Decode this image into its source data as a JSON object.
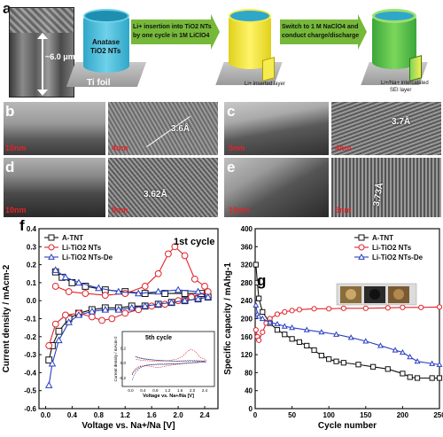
{
  "panel_a": {
    "label": "a",
    "sem_height": "~6.0 μm",
    "tube_label_1": "Anatase",
    "tube_label_2": "TiO2 NTs",
    "substrate": "Ti foil",
    "step1_line1": "Li+ insertion into TiO2 NTs",
    "step1_line2": "by one cycle in 1M LiClO4",
    "step2_line1": "Switch to 1 M NaClO4 and",
    "step2_line2": "conduct charge/discharge",
    "inserted_layer": "Li+ inserted layer",
    "sei_line1": "Li+/Na+ intercalated",
    "sei_line2": "SEI layer"
  },
  "panel_b": {
    "label": "b",
    "scale_left": "10nm",
    "scale_right": "4nm",
    "d_spacing": "3.6Å"
  },
  "panel_c": {
    "label": "c",
    "scale_left": "5nm",
    "scale_right": "4nm",
    "d_spacing": "3.7Å"
  },
  "panel_d": {
    "label": "d",
    "scale_left": "10nm",
    "scale_right": "5nm",
    "d_spacing": "3.62Å"
  },
  "panel_e": {
    "label": "e",
    "scale_left": "10nm",
    "scale_right": "5nm",
    "d_spacing": "3.73Å"
  },
  "panel_f": {
    "label": "f",
    "annotation": "1st cycle",
    "inset_label": "5th cycle",
    "inset_xlabel": "Voltage vs. Na+/Na [V]",
    "inset_ylabel": "Current density / mAcm-2",
    "inset_x_ticks": [
      "0.0",
      "0.4",
      "0.8",
      "1.2",
      "1.6",
      "2.0",
      "2.4"
    ],
    "inset_y_ticks": [
      "-0.2",
      "0.0",
      "0.2"
    ]
  },
  "panel_g": {
    "label": "g",
    "inset": "electrode photos"
  },
  "chart_data": [
    {
      "type": "line",
      "title": "",
      "xlabel": "Voltage vs. Na+/Na [V]",
      "ylabel": "Current density / mAcm-2",
      "xlim": [
        -0.1,
        2.6
      ],
      "ylim": [
        -0.6,
        0.4
      ],
      "x_ticks": [
        "0.0",
        "0.4",
        "0.8",
        "1.2",
        "1.6",
        "2.0",
        "2.4"
      ],
      "y_ticks": [
        "0.4",
        "0.3",
        "0.2",
        "0.1",
        "0.0",
        "-0.1",
        "-0.2",
        "-0.3",
        "-0.4",
        "-0.5",
        "-0.6"
      ],
      "legend": "top-left",
      "series": [
        {
          "name": "A-TNT",
          "color": "#111111",
          "marker": "square",
          "points": [
            [
              0.05,
              -0.33
            ],
            [
              0.1,
              -0.25
            ],
            [
              0.2,
              -0.17
            ],
            [
              0.35,
              -0.1
            ],
            [
              0.5,
              -0.07
            ],
            [
              0.7,
              -0.05
            ],
            [
              0.9,
              -0.04
            ],
            [
              1.1,
              -0.04
            ],
            [
              1.3,
              -0.03
            ],
            [
              1.5,
              -0.03
            ],
            [
              1.7,
              -0.02
            ],
            [
              1.9,
              -0.01
            ],
            [
              2.1,
              0.0
            ],
            [
              2.3,
              0.01
            ],
            [
              2.45,
              0.02
            ],
            [
              2.35,
              0.04
            ],
            [
              2.1,
              0.04
            ],
            [
              1.8,
              0.04
            ],
            [
              1.5,
              0.04
            ],
            [
              1.2,
              0.05
            ],
            [
              0.9,
              0.06
            ],
            [
              0.6,
              0.08
            ],
            [
              0.4,
              0.1
            ],
            [
              0.25,
              0.13
            ],
            [
              0.15,
              0.16
            ]
          ]
        },
        {
          "name": "Li-TiO2 NTs",
          "color": "#e0242a",
          "marker": "circle",
          "points": [
            [
              0.05,
              -0.25
            ],
            [
              0.15,
              -0.13
            ],
            [
              0.3,
              -0.08
            ],
            [
              0.5,
              -0.07
            ],
            [
              0.7,
              -0.09
            ],
            [
              0.85,
              -0.11
            ],
            [
              1.0,
              -0.1
            ],
            [
              1.2,
              -0.07
            ],
            [
              1.4,
              -0.05
            ],
            [
              1.6,
              -0.03
            ],
            [
              1.8,
              -0.02
            ],
            [
              2.0,
              0.0
            ],
            [
              2.2,
              0.02
            ],
            [
              2.45,
              0.05
            ],
            [
              2.4,
              0.08
            ],
            [
              2.25,
              0.12
            ],
            [
              2.1,
              0.25
            ],
            [
              1.95,
              0.3
            ],
            [
              1.85,
              0.26
            ],
            [
              1.7,
              0.15
            ],
            [
              1.5,
              0.08
            ],
            [
              1.2,
              0.04
            ],
            [
              0.9,
              0.03
            ],
            [
              0.6,
              0.04
            ],
            [
              0.35,
              0.05
            ],
            [
              0.15,
              0.08
            ]
          ]
        },
        {
          "name": "Li-TiO2 NTs-De",
          "color": "#2a3fbf",
          "marker": "triangle",
          "points": [
            [
              0.05,
              -0.47
            ],
            [
              0.1,
              -0.35
            ],
            [
              0.2,
              -0.22
            ],
            [
              0.35,
              -0.12
            ],
            [
              0.5,
              -0.08
            ],
            [
              0.7,
              -0.06
            ],
            [
              0.9,
              -0.05
            ],
            [
              1.1,
              -0.05
            ],
            [
              1.3,
              -0.04
            ],
            [
              1.5,
              -0.03
            ],
            [
              1.7,
              -0.02
            ],
            [
              1.9,
              -0.01
            ],
            [
              2.1,
              0.0
            ],
            [
              2.3,
              0.01
            ],
            [
              2.45,
              0.02
            ],
            [
              2.3,
              0.05
            ],
            [
              2.0,
              0.06
            ],
            [
              1.7,
              0.05
            ],
            [
              1.4,
              0.04
            ],
            [
              1.1,
              0.05
            ],
            [
              0.8,
              0.07
            ],
            [
              0.5,
              0.1
            ],
            [
              0.3,
              0.13
            ],
            [
              0.15,
              0.17
            ]
          ]
        }
      ]
    },
    {
      "type": "scatter",
      "title": "",
      "xlabel": "Cycle number",
      "ylabel": "Specific capacity / mAhg-1",
      "xlim": [
        0,
        250
      ],
      "ylim": [
        0,
        400
      ],
      "x_ticks": [
        "0",
        "50",
        "100",
        "150",
        "200",
        "250"
      ],
      "y_ticks": [
        "0",
        "40",
        "80",
        "120",
        "160",
        "200",
        "240",
        "280",
        "320",
        "360",
        "400"
      ],
      "legend": "top-right",
      "series": [
        {
          "name": "A-TNT",
          "color": "#111111",
          "marker": "square",
          "points": [
            [
              1,
              320
            ],
            [
              3,
              280
            ],
            [
              5,
              245
            ],
            [
              10,
              215
            ],
            [
              20,
              190
            ],
            [
              30,
              175
            ],
            [
              40,
              165
            ],
            [
              50,
              155
            ],
            [
              60,
              148
            ],
            [
              70,
              140
            ],
            [
              80,
              130
            ],
            [
              90,
              118
            ],
            [
              100,
              110
            ],
            [
              110,
              105
            ],
            [
              120,
              102
            ],
            [
              140,
              98
            ],
            [
              160,
              93
            ],
            [
              180,
              88
            ],
            [
              200,
              78
            ],
            [
              210,
              70
            ],
            [
              220,
              68
            ],
            [
              240,
              68
            ],
            [
              250,
              68
            ]
          ]
        },
        {
          "name": "Li-TiO2 NTs",
          "color": "#e0242a",
          "marker": "circle",
          "points": [
            [
              1,
              175
            ],
            [
              3,
              160
            ],
            [
              5,
              152
            ],
            [
              10,
              170
            ],
            [
              15,
              190
            ],
            [
              20,
              200
            ],
            [
              30,
              210
            ],
            [
              40,
              215
            ],
            [
              50,
              218
            ],
            [
              60,
              220
            ],
            [
              80,
              222
            ],
            [
              100,
              222
            ],
            [
              120,
              223
            ],
            [
              150,
              223
            ],
            [
              180,
              224
            ],
            [
              200,
              225
            ],
            [
              225,
              225
            ],
            [
              250,
              226
            ]
          ]
        },
        {
          "name": "Li-TiO2 NTs-De",
          "color": "#2a3fbf",
          "marker": "triangle",
          "points": [
            [
              1,
              230
            ],
            [
              3,
              210
            ],
            [
              5,
              205
            ],
            [
              10,
              200
            ],
            [
              20,
              192
            ],
            [
              30,
              188
            ],
            [
              40,
              183
            ],
            [
              50,
              180
            ],
            [
              70,
              175
            ],
            [
              90,
              170
            ],
            [
              110,
              165
            ],
            [
              130,
              158
            ],
            [
              150,
              150
            ],
            [
              170,
              140
            ],
            [
              190,
              130
            ],
            [
              200,
              125
            ],
            [
              210,
              115
            ],
            [
              220,
              105
            ],
            [
              240,
              100
            ],
            [
              250,
              98
            ]
          ]
        }
      ]
    }
  ]
}
